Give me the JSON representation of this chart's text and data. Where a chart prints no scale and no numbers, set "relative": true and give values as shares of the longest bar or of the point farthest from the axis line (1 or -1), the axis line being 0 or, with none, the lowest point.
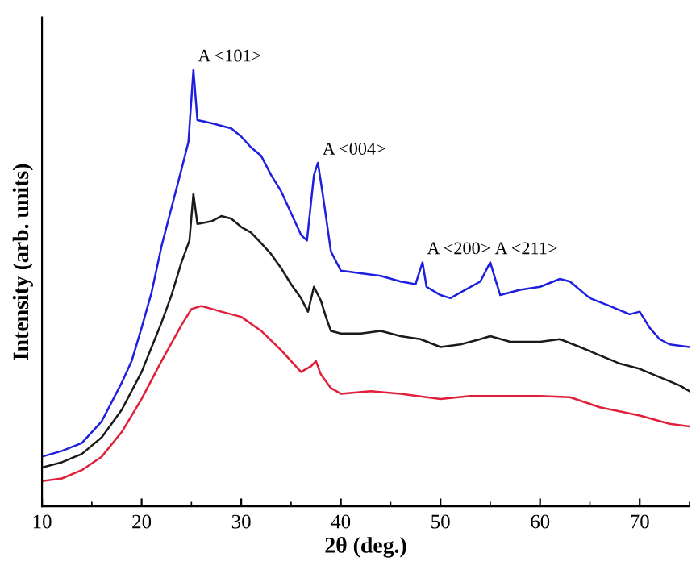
{
  "chart_data": {
    "type": "line",
    "relative": true,
    "xlabel": "2θ (deg.)",
    "ylabel": "Intensity (arb. units)",
    "xlim": [
      10,
      75
    ],
    "xticks": [
      10,
      20,
      30,
      40,
      50,
      60,
      70
    ],
    "grid": false,
    "marker": "none",
    "line_style": "solid",
    "annotations": [
      {
        "text": "A <101>",
        "x": 25.2,
        "y": 1.0
      },
      {
        "text": "A <004>",
        "x": 37.7,
        "y": 0.787
      },
      {
        "text": "A <200>",
        "x": 48.2,
        "y": 0.559
      },
      {
        "text": "A <211>",
        "x": 55,
        "y": 0.559
      }
    ],
    "series": [
      {
        "color": "#1f1fe0",
        "x": [
          10,
          12,
          14,
          16,
          18,
          19,
          20,
          21,
          22,
          23,
          24,
          24.7,
          25.2,
          25.6,
          27,
          28,
          29,
          30,
          31,
          32,
          33,
          34,
          35,
          36,
          36.6,
          37.3,
          37.7,
          38.3,
          39,
          40,
          42,
          44,
          46,
          47.5,
          48.2,
          48.6,
          50,
          51,
          52,
          54,
          55,
          55.5,
          56,
          58,
          60,
          62,
          63,
          65,
          67,
          69,
          70,
          71,
          72,
          73,
          75
        ],
        "values": [
          0.114,
          0.127,
          0.145,
          0.195,
          0.283,
          0.333,
          0.409,
          0.49,
          0.596,
          0.684,
          0.772,
          0.835,
          1.0,
          0.885,
          0.878,
          0.872,
          0.866,
          0.847,
          0.822,
          0.803,
          0.759,
          0.722,
          0.672,
          0.622,
          0.609,
          0.759,
          0.787,
          0.697,
          0.584,
          0.54,
          0.534,
          0.528,
          0.515,
          0.509,
          0.559,
          0.503,
          0.484,
          0.477,
          0.49,
          0.515,
          0.559,
          0.521,
          0.484,
          0.496,
          0.503,
          0.521,
          0.515,
          0.477,
          0.459,
          0.44,
          0.446,
          0.409,
          0.383,
          0.371,
          0.365
        ]
      },
      {
        "color": "#1a1a1a",
        "x": [
          10,
          12,
          14,
          16,
          18,
          20,
          22,
          23,
          24,
          24.8,
          25.2,
          25.6,
          27,
          28,
          29,
          30,
          31,
          32,
          33,
          34,
          35,
          36,
          36.7,
          37.3,
          38,
          38.5,
          39,
          40,
          42,
          44,
          46,
          48,
          50,
          52,
          54,
          55,
          57,
          60,
          62,
          64,
          66,
          68,
          70,
          72,
          74,
          75
        ],
        "values": [
          0.089,
          0.101,
          0.12,
          0.158,
          0.221,
          0.308,
          0.421,
          0.484,
          0.559,
          0.609,
          0.716,
          0.647,
          0.653,
          0.665,
          0.659,
          0.64,
          0.627,
          0.603,
          0.578,
          0.546,
          0.509,
          0.477,
          0.446,
          0.503,
          0.471,
          0.434,
          0.402,
          0.396,
          0.396,
          0.402,
          0.39,
          0.383,
          0.365,
          0.371,
          0.383,
          0.39,
          0.377,
          0.377,
          0.383,
          0.365,
          0.346,
          0.327,
          0.315,
          0.296,
          0.277,
          0.264
        ]
      },
      {
        "color": "#e0203a",
        "x": [
          10,
          12,
          14,
          16,
          18,
          20,
          22,
          24,
          25,
          26,
          28,
          30,
          32,
          34,
          36,
          37,
          37.5,
          38,
          39,
          40,
          43,
          46,
          50,
          53,
          56,
          60,
          63,
          66,
          70,
          73,
          75
        ],
        "values": [
          0.058,
          0.064,
          0.083,
          0.114,
          0.17,
          0.246,
          0.333,
          0.415,
          0.452,
          0.459,
          0.446,
          0.434,
          0.402,
          0.358,
          0.308,
          0.321,
          0.333,
          0.302,
          0.271,
          0.258,
          0.264,
          0.258,
          0.246,
          0.253,
          0.253,
          0.253,
          0.25,
          0.227,
          0.208,
          0.189,
          0.183
        ]
      }
    ]
  }
}
